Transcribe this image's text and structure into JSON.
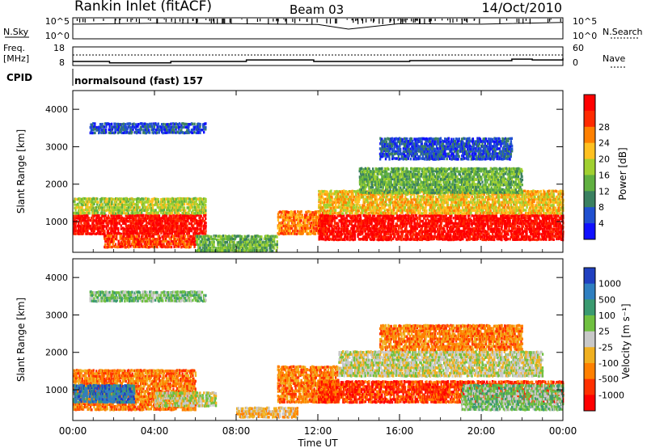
{
  "header": {
    "station": "Rankin Inlet (fitACF)",
    "beam": "Beam 03",
    "date": "14/Oct/2010"
  },
  "top_panels": {
    "nsky_label": "N.Sky",
    "nsky_ticks": [
      "10^5",
      "10^0"
    ],
    "nsearch_label": "N.Search",
    "nsearch_ticks": [
      "10^5",
      "10^0"
    ],
    "freq_label_1": "Freq.",
    "freq_label_2": "[MHz]",
    "freq_ticks": [
      "18",
      "8"
    ],
    "nave_label": "Nave",
    "nave_ticks": [
      "60",
      "0"
    ],
    "cpid_label": "CPID",
    "cpid_value": "normalsound (fast) 157"
  },
  "x_axis": {
    "label": "Time UT",
    "ticks": [
      "00:00",
      "04:00",
      "08:00",
      "12:00",
      "16:00",
      "20:00",
      "00:00"
    ]
  },
  "power_panel": {
    "ylabel": "Slant Range [km]",
    "yticks": [
      "1000",
      "2000",
      "3000",
      "4000"
    ],
    "colorbar_label": "Power [dB]",
    "colorbar_ticks": [
      "4",
      "8",
      "12",
      "16",
      "20",
      "24",
      "28"
    ],
    "colors": [
      "#1010ff",
      "#2050d0",
      "#3a8060",
      "#60b040",
      "#a0d030",
      "#ffc020",
      "#ff8000",
      "#ff2a00",
      "#ff0000"
    ]
  },
  "velocity_panel": {
    "ylabel": "Slant Range [km]",
    "yticks": [
      "1000",
      "2000",
      "3000",
      "4000"
    ],
    "colorbar_label": "Velocity [m s⁻¹]",
    "colorbar_ticks": [
      "1000",
      "500",
      "100",
      "25",
      "-25",
      "-100",
      "-500",
      "-1000"
    ],
    "colors": [
      "#2040c0",
      "#2f7fc0",
      "#3a9a70",
      "#70c040",
      "#c8c8c8",
      "#f0b020",
      "#ff8000",
      "#ff3000",
      "#ff0000"
    ]
  },
  "chart_data": [
    {
      "type": "line",
      "title": "Rankin Inlet (fitACF)",
      "series": [
        {
          "name": "N.Sky",
          "x": [
            0,
            4,
            8,
            12,
            13.5,
            16,
            20,
            24
          ],
          "values": [
            3000,
            5000,
            4000,
            2500,
            200,
            4000,
            3000,
            8000
          ]
        }
      ],
      "ylim": [
        1,
        100000
      ]
    },
    {
      "type": "line",
      "series": [
        {
          "name": "Freq.",
          "x": [
            0,
            1.8,
            4.8,
            8.5,
            11.8,
            16.5,
            21.5,
            22.5,
            24
          ],
          "values": [
            10.2,
            9.4,
            10.2,
            11.0,
            10.2,
            10.6,
            11.4,
            11.0,
            12.0
          ]
        }
      ],
      "ylim": [
        8,
        18
      ]
    },
    {
      "type": "heatmap",
      "ylabel": "Slant Range [km]",
      "xlabel": "Time UT",
      "x_range_hours": [
        0,
        24
      ],
      "ylim": [
        180,
        4500
      ],
      "value_label": "Power [dB]",
      "value_range": [
        0,
        32
      ],
      "bands": [
        {
          "t0": 0,
          "t1": 6.5,
          "r0": 700,
          "r1": 1250,
          "level": 8
        },
        {
          "t0": 1.5,
          "t1": 6,
          "r0": 350,
          "r1": 700,
          "level": 7
        },
        {
          "t0": 0,
          "t1": 6.5,
          "r0": 1250,
          "r1": 1700,
          "level": 4
        },
        {
          "t0": 0.8,
          "t1": 6.5,
          "r0": 3400,
          "r1": 3700,
          "level": 1
        },
        {
          "t0": 6,
          "t1": 10,
          "r0": 250,
          "r1": 700,
          "level": 3
        },
        {
          "t0": 10,
          "t1": 12.5,
          "r0": 700,
          "r1": 1350,
          "level": 6
        },
        {
          "t0": 12,
          "t1": 24,
          "r0": 550,
          "r1": 1250,
          "level": 8
        },
        {
          "t0": 12,
          "t1": 24,
          "r0": 1250,
          "r1": 1900,
          "level": 5
        },
        {
          "t0": 14,
          "t1": 22,
          "r0": 1800,
          "r1": 2500,
          "level": 3
        },
        {
          "t0": 15,
          "t1": 21.5,
          "r0": 2700,
          "r1": 3300,
          "level": 1
        }
      ]
    },
    {
      "type": "heatmap",
      "ylabel": "Slant Range [km]",
      "xlabel": "Time UT",
      "x_range_hours": [
        0,
        24
      ],
      "ylim": [
        180,
        4500
      ],
      "value_label": "Velocity [m s⁻¹]",
      "value_range": [
        -1000,
        1000
      ],
      "bands": [
        {
          "t0": 0,
          "t1": 6,
          "r0": 500,
          "r1": 1600,
          "level": 6
        },
        {
          "t0": 0,
          "t1": 3,
          "r0": 700,
          "r1": 1200,
          "level": 1
        },
        {
          "t0": 4,
          "t1": 7,
          "r0": 600,
          "r1": 1000,
          "level": 4
        },
        {
          "t0": 0.8,
          "t1": 6.5,
          "r0": 3400,
          "r1": 3700,
          "level": 3
        },
        {
          "t0": 8,
          "t1": 11,
          "r0": 300,
          "r1": 600,
          "level": 5
        },
        {
          "t0": 10,
          "t1": 13,
          "r0": 700,
          "r1": 1700,
          "level": 6
        },
        {
          "t0": 12,
          "t1": 24,
          "r0": 700,
          "r1": 1300,
          "level": 7
        },
        {
          "t0": 13,
          "t1": 23,
          "r0": 1400,
          "r1": 2100,
          "level": 4
        },
        {
          "t0": 15,
          "t1": 22,
          "r0": 2100,
          "r1": 2800,
          "level": 6
        },
        {
          "t0": 19,
          "t1": 24,
          "r0": 500,
          "r1": 1200,
          "level": 3
        }
      ]
    }
  ]
}
